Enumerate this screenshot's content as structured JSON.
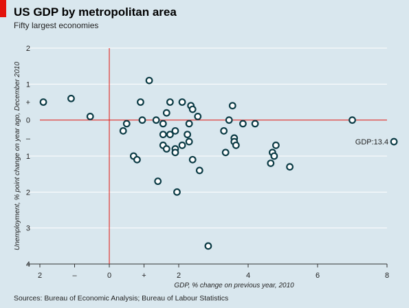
{
  "header": {
    "title": "US GDP by metropolitan area",
    "subtitle": "Fifty largest economies"
  },
  "footer": {
    "source": "Sources: Bureau of Economic Analysis; Bureau of Labour Statistics"
  },
  "colors": {
    "background": "#d9e7ee",
    "accent_red": "#e3120b",
    "marker_stroke": "#0b3b45",
    "marker_fill": "#ffffff",
    "grid": "#ffffff"
  },
  "chart_data": {
    "type": "scatter",
    "title": "US GDP by metropolitan area",
    "subtitle": "Fifty largest economies",
    "xlabel": "GDP, % change on previous year, 2010",
    "ylabel": "Unemployment, % point change on year ago, December 2010",
    "xlim": [
      -2,
      8
    ],
    "ylim": [
      -2,
      4
    ],
    "y_inverted": true,
    "x_ticks": [
      {
        "value": -2,
        "label": "2"
      },
      {
        "value": -1,
        "label": "–"
      },
      {
        "value": 0,
        "label": "0"
      },
      {
        "value": 1,
        "label": "+"
      },
      {
        "value": 2,
        "label": "2"
      },
      {
        "value": 4,
        "label": "4"
      },
      {
        "value": 6,
        "label": "6"
      },
      {
        "value": 8,
        "label": "8"
      }
    ],
    "y_ticks": [
      {
        "value": -2,
        "label": "2"
      },
      {
        "value": -1,
        "label": "1"
      },
      {
        "value": -0.5,
        "label": "+"
      },
      {
        "value": 0,
        "label": "0"
      },
      {
        "value": 0.5,
        "label": "–"
      },
      {
        "value": 1,
        "label": "1"
      },
      {
        "value": 2,
        "label": "2"
      },
      {
        "value": 3,
        "label": "3"
      },
      {
        "value": 4,
        "label": "4"
      }
    ],
    "grid": "horizontal",
    "reference_lines": {
      "x": 0,
      "y": 0
    },
    "points": [
      {
        "x": -1.9,
        "y": -0.5
      },
      {
        "x": -1.1,
        "y": -0.6
      },
      {
        "x": -0.55,
        "y": -0.1
      },
      {
        "x": 0.4,
        "y": 0.3
      },
      {
        "x": 0.5,
        "y": 0.1
      },
      {
        "x": 0.7,
        "y": 1.0
      },
      {
        "x": 0.8,
        "y": 1.1
      },
      {
        "x": 0.9,
        "y": -0.5
      },
      {
        "x": 0.95,
        "y": 0.0
      },
      {
        "x": 1.15,
        "y": -1.1
      },
      {
        "x": 1.35,
        "y": 0.0
      },
      {
        "x": 1.4,
        "y": 1.7
      },
      {
        "x": 1.55,
        "y": 0.1
      },
      {
        "x": 1.55,
        "y": 0.4
      },
      {
        "x": 1.55,
        "y": 0.7
      },
      {
        "x": 1.65,
        "y": -0.2
      },
      {
        "x": 1.65,
        "y": 0.8
      },
      {
        "x": 1.75,
        "y": 0.4
      },
      {
        "x": 1.75,
        "y": -0.5
      },
      {
        "x": 1.9,
        "y": 0.3
      },
      {
        "x": 1.9,
        "y": 0.8
      },
      {
        "x": 1.9,
        "y": 0.9
      },
      {
        "x": 1.95,
        "y": 2.0
      },
      {
        "x": 2.1,
        "y": 0.7
      },
      {
        "x": 2.1,
        "y": -0.5
      },
      {
        "x": 2.25,
        "y": 0.4
      },
      {
        "x": 2.3,
        "y": 0.1
      },
      {
        "x": 2.3,
        "y": 0.6
      },
      {
        "x": 2.35,
        "y": -0.4
      },
      {
        "x": 2.4,
        "y": -0.3
      },
      {
        "x": 2.4,
        "y": 1.1
      },
      {
        "x": 2.55,
        "y": -0.1
      },
      {
        "x": 2.6,
        "y": 1.4
      },
      {
        "x": 2.85,
        "y": 3.5
      },
      {
        "x": 3.3,
        "y": 0.3
      },
      {
        "x": 3.35,
        "y": 0.9
      },
      {
        "x": 3.45,
        "y": 0.0
      },
      {
        "x": 3.55,
        "y": -0.4
      },
      {
        "x": 3.6,
        "y": 0.5
      },
      {
        "x": 3.6,
        "y": 0.6
      },
      {
        "x": 3.65,
        "y": 0.7
      },
      {
        "x": 3.85,
        "y": 0.1
      },
      {
        "x": 4.2,
        "y": 0.1
      },
      {
        "x": 4.65,
        "y": 1.2
      },
      {
        "x": 4.7,
        "y": 0.9
      },
      {
        "x": 4.75,
        "y": 1.0
      },
      {
        "x": 4.8,
        "y": 0.7
      },
      {
        "x": 5.2,
        "y": 1.3
      },
      {
        "x": 7.0,
        "y": 0.0
      },
      {
        "x": 8.2,
        "y": 0.6,
        "label": "GDP:13.4"
      }
    ]
  }
}
